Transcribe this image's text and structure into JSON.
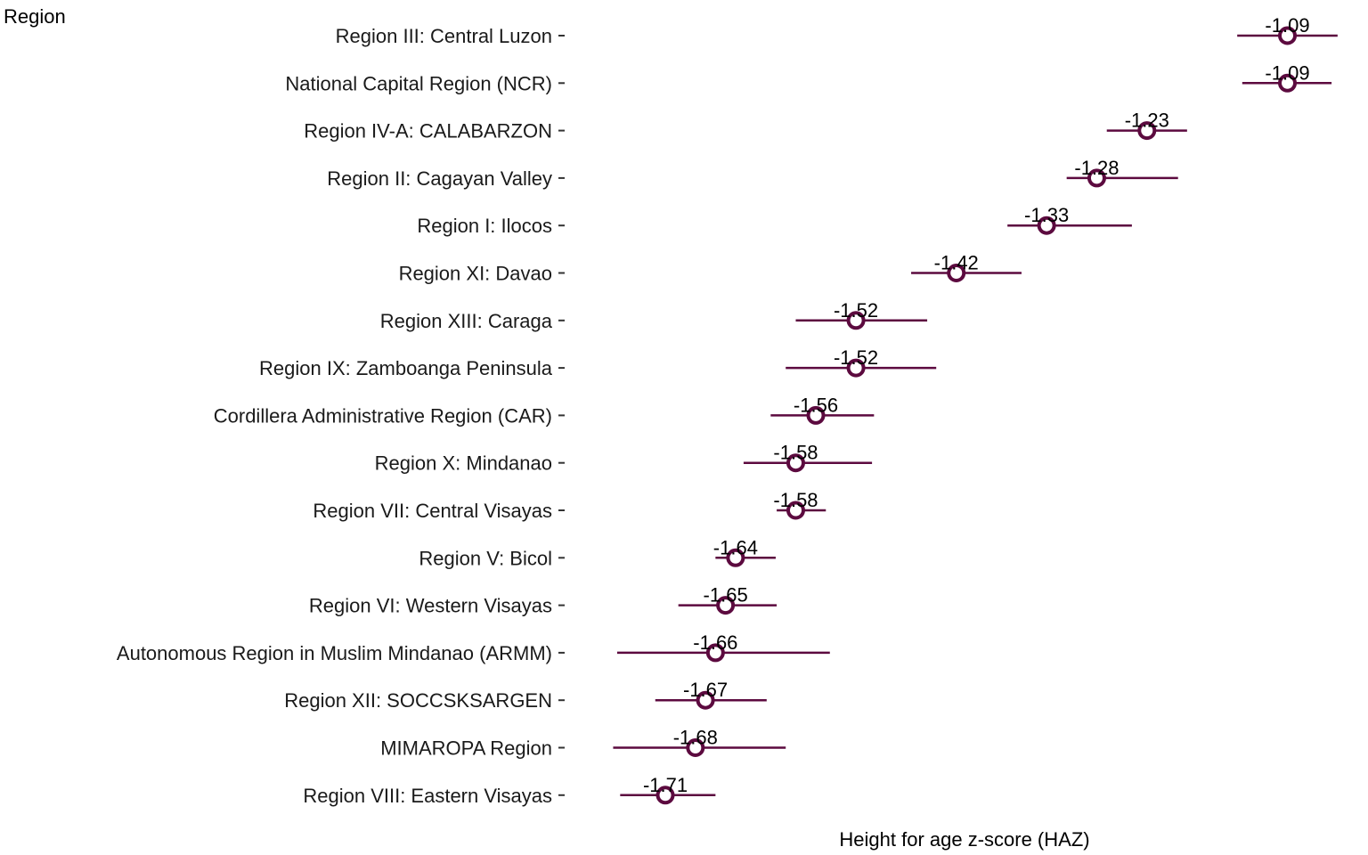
{
  "chart_data": {
    "type": "dot-interval",
    "ylabel": "Region",
    "xlabel": "Height for age z-score (HAZ)",
    "colors": {
      "series": "#5c0a3f",
      "point_fill": "#ffffff"
    },
    "grid": false,
    "xlim": [
      -1.805,
      -1.015
    ],
    "rows": [
      {
        "category": "Region III: Central Luzon",
        "value": -1.09,
        "label": "-1.09",
        "lo": -1.14,
        "hi": -1.04
      },
      {
        "category": "National Capital Region (NCR)",
        "value": -1.09,
        "label": "-1.09",
        "lo": -1.135,
        "hi": -1.046
      },
      {
        "category": "Region IV-A: CALABARZON",
        "value": -1.23,
        "label": "-1.23",
        "lo": -1.27,
        "hi": -1.19
      },
      {
        "category": "Region II: Cagayan Valley",
        "value": -1.28,
        "label": "-1.28",
        "lo": -1.31,
        "hi": -1.199
      },
      {
        "category": "Region I: Ilocos",
        "value": -1.33,
        "label": "-1.33",
        "lo": -1.369,
        "hi": -1.245
      },
      {
        "category": "Region XI: Davao",
        "value": -1.42,
        "label": "-1.42",
        "lo": -1.465,
        "hi": -1.355
      },
      {
        "category": "Region XIII: Caraga",
        "value": -1.52,
        "label": "-1.52",
        "lo": -1.58,
        "hi": -1.449
      },
      {
        "category": "Region IX: Zamboanga Peninsula",
        "value": -1.52,
        "label": "-1.52",
        "lo": -1.59,
        "hi": -1.44
      },
      {
        "category": "Cordillera Administrative Region (CAR)",
        "value": -1.56,
        "label": "-1.56",
        "lo": -1.605,
        "hi": -1.502
      },
      {
        "category": "Region X: Mindanao",
        "value": -1.58,
        "label": "-1.58",
        "lo": -1.632,
        "hi": -1.504
      },
      {
        "category": "Region VII: Central Visayas",
        "value": -1.58,
        "label": "-1.58",
        "lo": -1.599,
        "hi": -1.55
      },
      {
        "category": "Region V: Bicol",
        "value": -1.64,
        "label": "-1.64",
        "lo": -1.66,
        "hi": -1.6
      },
      {
        "category": "Region VI: Western Visayas",
        "value": -1.65,
        "label": "-1.65",
        "lo": -1.697,
        "hi": -1.599
      },
      {
        "category": "Autonomous Region in Muslim Mindanao (ARMM)",
        "value": -1.66,
        "label": "-1.66",
        "lo": -1.758,
        "hi": -1.546
      },
      {
        "category": "Region XII: SOCCSKSARGEN",
        "value": -1.67,
        "label": "-1.67",
        "lo": -1.72,
        "hi": -1.609
      },
      {
        "category": "MIMAROPA Region",
        "value": -1.68,
        "label": "-1.68",
        "lo": -1.762,
        "hi": -1.59
      },
      {
        "category": "Region VIII: Eastern Visayas",
        "value": -1.71,
        "label": "-1.71",
        "lo": -1.755,
        "hi": -1.66
      }
    ]
  }
}
